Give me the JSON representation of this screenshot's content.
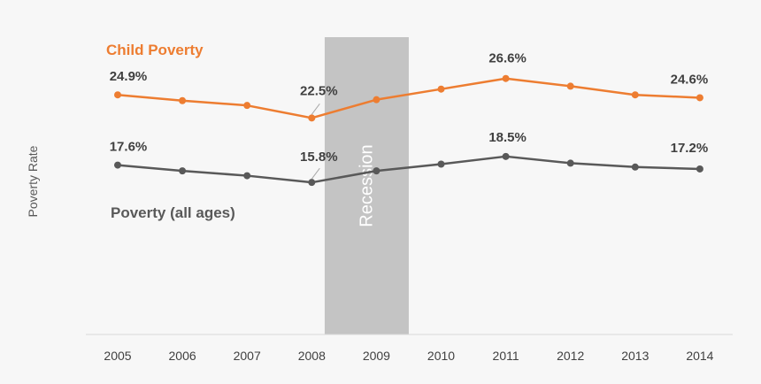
{
  "chart_data": {
    "type": "line",
    "title": "",
    "xlabel": "",
    "ylabel": "Poverty Rate",
    "x": [
      "2005",
      "2006",
      "2007",
      "2008",
      "2009",
      "2010",
      "2011",
      "2012",
      "2013",
      "2014"
    ],
    "ylim": [
      0,
      30
    ],
    "grid": false,
    "series": [
      {
        "name": "Child Poverty",
        "color": "#ed7d31",
        "values": [
          24.9,
          24.3,
          23.8,
          22.5,
          24.4,
          25.5,
          26.6,
          25.8,
          24.9,
          24.6
        ],
        "labels": [
          {
            "index": 0,
            "text": "24.9%"
          },
          {
            "index": 3,
            "text": "22.5%"
          },
          {
            "index": 6,
            "text": "26.6%"
          },
          {
            "index": 9,
            "text": "24.6%"
          }
        ]
      },
      {
        "name": "Poverty (all ages)",
        "color": "#595959",
        "values": [
          17.6,
          17.0,
          16.5,
          15.8,
          17.0,
          17.7,
          18.5,
          17.8,
          17.4,
          17.2
        ],
        "labels": [
          {
            "index": 0,
            "text": "17.6%"
          },
          {
            "index": 3,
            "text": "15.8%"
          },
          {
            "index": 6,
            "text": "18.5%"
          },
          {
            "index": 9,
            "text": "17.2%"
          }
        ]
      }
    ],
    "annotations": [
      {
        "type": "band",
        "label": "Recession",
        "from": "2008",
        "to": "2009",
        "color": "#c4c4c4"
      }
    ]
  }
}
